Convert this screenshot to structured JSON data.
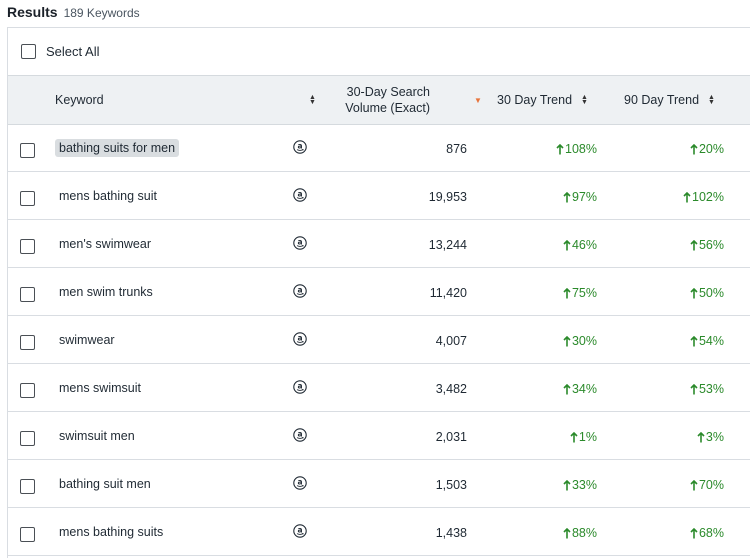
{
  "results": {
    "title": "Results",
    "count": "189 Keywords"
  },
  "select_all": {
    "label": "Select All"
  },
  "columns": {
    "keyword": "Keyword",
    "volume_line1": "30-Day Search",
    "volume_line2": "Volume (Exact)",
    "trend30": "30 Day Trend",
    "trend90": "90 Day Trend"
  },
  "colors": {
    "trend_up": "#2b8a2b",
    "sort_active": "#e8743b",
    "header_bg": "#eef1f3"
  },
  "rows": [
    {
      "keyword": "bathing suits for men",
      "volume": "876",
      "trend30": "108%",
      "trend90": "20%",
      "highlighted": true
    },
    {
      "keyword": "mens bathing suit",
      "volume": "19,953",
      "trend30": "97%",
      "trend90": "102%"
    },
    {
      "keyword": "men's swimwear",
      "volume": "13,244",
      "trend30": "46%",
      "trend90": "56%"
    },
    {
      "keyword": "men swim trunks",
      "volume": "11,420",
      "trend30": "75%",
      "trend90": "50%"
    },
    {
      "keyword": "swimwear",
      "volume": "4,007",
      "trend30": "30%",
      "trend90": "54%"
    },
    {
      "keyword": "mens swimsuit",
      "volume": "3,482",
      "trend30": "34%",
      "trend90": "53%"
    },
    {
      "keyword": "swimsuit men",
      "volume": "2,031",
      "trend30": "1%",
      "trend90": "3%"
    },
    {
      "keyword": "bathing suit men",
      "volume": "1,503",
      "trend30": "33%",
      "trend90": "70%"
    },
    {
      "keyword": "mens bathing suits",
      "volume": "1,438",
      "trend30": "88%",
      "trend90": "68%"
    }
  ]
}
